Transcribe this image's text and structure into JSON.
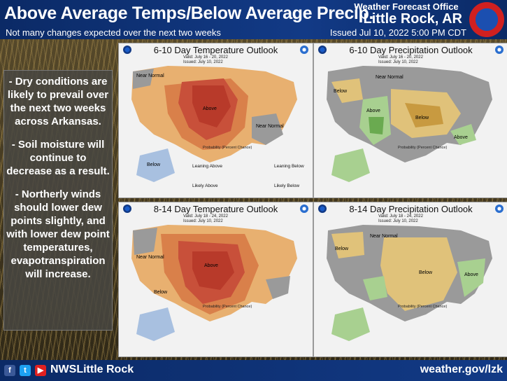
{
  "header": {
    "title": "Above Average Temps/Below Average Precip.",
    "subtitle": "Not many changes expected over the next two weeks",
    "office": "Weather Forecast Office",
    "city": "Little Rock, AR",
    "issued": "Issued Jul 10, 2022 5:00 PM CDT"
  },
  "summary": {
    "p1": "- Dry conditions are likely to prevail over the next two weeks across Arkansas.",
    "p2": "- Soil moisture will continue to decrease as a result.",
    "p3": "- Northerly winds should lower dew points slightly, and with lower dew point temperatures, evapotranspiration will increase."
  },
  "panels": {
    "temp610": {
      "title": "6-10 Day Temperature Outlook",
      "valid": "Valid:  July 16 - 20, 2022",
      "issued": "Issued:  July 10, 2022",
      "legend_title": "Probability (Percent Chance)"
    },
    "precip610": {
      "title": "6-10 Day Precipitation Outlook",
      "valid": "Valid:  July 16 - 20, 2022",
      "issued": "Issued:  July 10, 2022",
      "legend_title": "Probability (Percent Chance)"
    },
    "temp814": {
      "title": "8-14 Day Temperature Outlook",
      "valid": "Valid:  July 18 - 24, 2022",
      "issued": "Issued:  July 10, 2022",
      "legend_title": "Probability (Percent Chance)"
    },
    "precip814": {
      "title": "8-14 Day Precipitation Outlook",
      "valid": "Valid:  July 18 - 24, 2022",
      "issued": "Issued:  July 10, 2022",
      "legend_title": "Probability (Percent Chance)"
    }
  },
  "map_labels": {
    "above": "Above",
    "below": "Below",
    "near_normal": "Near Normal",
    "leaning_above": "Leaning Above",
    "likely_above": "Likely Above",
    "leaning_below": "Leaning Below",
    "likely_below": "Likely Below"
  },
  "colors": {
    "header_blue": "#123a86",
    "above_light": "#e8b070",
    "above_mid": "#d9804a",
    "above_dark": "#b83a2a",
    "below_light": "#a8c0e0",
    "near_normal": "#9a9a9a",
    "precip_below": "#e0c27a",
    "precip_below_dark": "#c89a40",
    "precip_above": "#a8d090",
    "precip_above_dark": "#6aaa50"
  },
  "footer": {
    "handle": "NWSLittle Rock",
    "url": "weather.gov/lzk"
  }
}
